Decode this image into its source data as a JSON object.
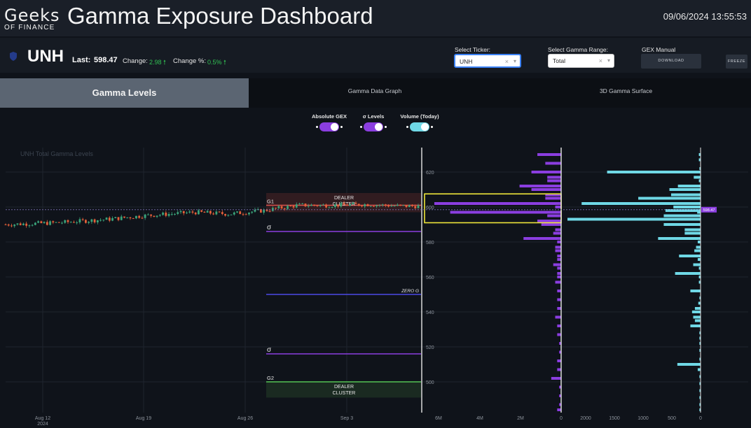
{
  "header": {
    "logo_main": "Geeks",
    "logo_sub": "OF FINANCE",
    "title": "Gamma Exposure Dashboard",
    "timestamp": "09/06/2024 13:55:53"
  },
  "ticker": {
    "symbol": "UNH",
    "last_label": "Last:",
    "last_value": "598.47",
    "change_label": "Change:",
    "change_value": "2.98",
    "change_pct_label": "Change %:",
    "change_pct_value": "0.5%",
    "up_color": "#31c053"
  },
  "controls": {
    "ticker_select_label": "Select Ticker:",
    "ticker_select_value": "UNH",
    "range_select_label": "Select Gamma Range:",
    "range_select_value": "Total",
    "gex_manual_label": "GEX Manual",
    "download_label": "DOWNLOAD",
    "freeze_label": "FREEZE"
  },
  "tabs": [
    {
      "label": "Gamma Levels",
      "active": true
    },
    {
      "label": "Gamma Data Graph",
      "active": false
    },
    {
      "label": "3D Gamma Surface",
      "active": false
    }
  ],
  "toggles": [
    {
      "label": "Absolute GEX",
      "on": true,
      "color": "#8b3ee0"
    },
    {
      "label": "σ Levels",
      "on": true,
      "color": "#8b3ee0"
    },
    {
      "label": "Volume (Today)",
      "on": true,
      "color": "#6fd8e6"
    }
  ],
  "chart_data": {
    "type": "candlestick + horizontal bar",
    "title": "UNH Total Gamma Levels",
    "x_tick_labels": [
      "Aug 12",
      "Aug 19",
      "Aug 26",
      "Sep 3"
    ],
    "x_year_label": "2024",
    "y_tick_labels": [
      500,
      520,
      540,
      560,
      580,
      600,
      620
    ],
    "ylim": [
      482,
      634
    ],
    "last_price": 598.47,
    "last_price_label": "598.47",
    "price_path": [
      [
        0,
        590
      ],
      [
        3,
        591
      ],
      [
        6,
        593
      ],
      [
        8,
        595
      ],
      [
        11,
        597
      ],
      [
        13,
        596
      ],
      [
        15,
        598
      ],
      [
        17,
        601
      ],
      [
        19,
        601
      ],
      [
        21,
        601.5
      ],
      [
        23,
        600.5
      ],
      [
        24,
        600.5
      ]
    ],
    "levels": [
      {
        "name": "G1",
        "value": 601,
        "color": "#d9534f"
      },
      {
        "name": "σ",
        "value": 586,
        "color": "#8b3ee0"
      },
      {
        "name": "ZERO G",
        "value": 550,
        "color": "#4b4be6"
      },
      {
        "name": "σ",
        "value": 516,
        "color": "#8b3ee0"
      },
      {
        "name": "G2",
        "value": 500,
        "color": "#55c455"
      }
    ],
    "dealer_cluster_label_1": "DEALER",
    "dealer_cluster_label_2": "CLUSTER",
    "gex_axis_labels": [
      "6M",
      "4M",
      "2M",
      "0"
    ],
    "gex_axis_max": 7000000,
    "gex_bars": [
      [
        630,
        1200000
      ],
      [
        625,
        800000
      ],
      [
        620,
        1500000
      ],
      [
        617,
        700000
      ],
      [
        615,
        700000
      ],
      [
        612,
        2100000
      ],
      [
        610,
        1500000
      ],
      [
        607,
        800000
      ],
      [
        605,
        800000
      ],
      [
        602,
        6400000
      ],
      [
        600,
        300000
      ],
      [
        597,
        5600000
      ],
      [
        595,
        700000
      ],
      [
        592,
        1200000
      ],
      [
        590,
        1000000
      ],
      [
        587,
        300000
      ],
      [
        585,
        400000
      ],
      [
        582,
        1900000
      ],
      [
        580,
        200000
      ],
      [
        577,
        300000
      ],
      [
        575,
        300000
      ],
      [
        572,
        200000
      ],
      [
        570,
        200000
      ],
      [
        567,
        400000
      ],
      [
        565,
        200000
      ],
      [
        562,
        200000
      ],
      [
        560,
        200000
      ],
      [
        557,
        300000
      ],
      [
        552,
        200000
      ],
      [
        547,
        200000
      ],
      [
        542,
        200000
      ],
      [
        537,
        300000
      ],
      [
        532,
        200000
      ],
      [
        527,
        200000
      ],
      [
        522,
        100000
      ],
      [
        517,
        100000
      ],
      [
        512,
        200000
      ],
      [
        507,
        200000
      ],
      [
        502,
        500000
      ],
      [
        497,
        100000
      ],
      [
        492,
        100000
      ],
      [
        487,
        100000
      ],
      [
        484,
        200000
      ]
    ],
    "volume_axis_labels": [
      "2000",
      "1500",
      "1000",
      "500",
      "0"
    ],
    "volume_axis_max": 2350,
    "volume_bars": [
      [
        630,
        30
      ],
      [
        627,
        30
      ],
      [
        622,
        20
      ],
      [
        620,
        1650
      ],
      [
        617,
        120
      ],
      [
        615,
        30
      ],
      [
        612,
        400
      ],
      [
        610,
        550
      ],
      [
        607,
        520
      ],
      [
        605,
        1100
      ],
      [
        602,
        2100
      ],
      [
        600,
        480
      ],
      [
        598,
        620
      ],
      [
        597,
        60
      ],
      [
        595,
        650
      ],
      [
        593,
        2350
      ],
      [
        590,
        650
      ],
      [
        587,
        280
      ],
      [
        585,
        280
      ],
      [
        582,
        750
      ],
      [
        580,
        50
      ],
      [
        577,
        80
      ],
      [
        575,
        110
      ],
      [
        572,
        380
      ],
      [
        570,
        50
      ],
      [
        567,
        130
      ],
      [
        565,
        30
      ],
      [
        562,
        450
      ],
      [
        560,
        30
      ],
      [
        557,
        30
      ],
      [
        552,
        180
      ],
      [
        548,
        20
      ],
      [
        545,
        40
      ],
      [
        542,
        100
      ],
      [
        540,
        150
      ],
      [
        537,
        130
      ],
      [
        535,
        100
      ],
      [
        532,
        180
      ],
      [
        528,
        20
      ],
      [
        525,
        20
      ],
      [
        522,
        20
      ],
      [
        518,
        20
      ],
      [
        513,
        20
      ],
      [
        510,
        410
      ],
      [
        507,
        50
      ],
      [
        503,
        20
      ],
      [
        499,
        20
      ],
      [
        495,
        20
      ],
      [
        491,
        20
      ],
      [
        487,
        20
      ],
      [
        484,
        20
      ]
    ],
    "colors": {
      "up": "#3aa37a",
      "down": "#e5603a",
      "gex_bar": "#8b3ee0",
      "volume_bar": "#6fd8e6",
      "highlight_box": "#f0e63a",
      "grid": "#1f252e"
    }
  }
}
